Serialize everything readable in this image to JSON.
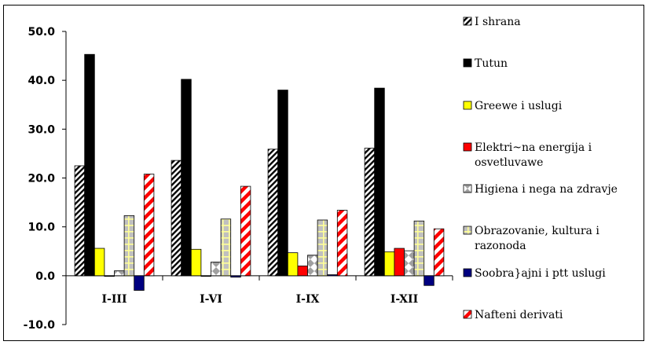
{
  "chart_data": {
    "type": "bar",
    "categories": [
      "I-III",
      "I-VI",
      "I-IX",
      "I-XII"
    ],
    "ylim": [
      -10,
      50
    ],
    "yticks": [
      -10,
      0,
      10,
      20,
      30,
      40,
      50
    ],
    "ytick_labels": [
      "-10.0",
      "0.0",
      "10.0",
      "20.0",
      "30.0",
      "40.0",
      "50.0"
    ],
    "grid": false,
    "legend_position": "right",
    "series": [
      {
        "name": "I shrana",
        "values": [
          22.5,
          23.6,
          25.9,
          26.1
        ],
        "color": "#ffffff",
        "pattern": "dark-diagonal"
      },
      {
        "name": "Tutun",
        "values": [
          45.3,
          40.2,
          38.0,
          38.4
        ],
        "color": "#000000",
        "pattern": "solid"
      },
      {
        "name": "Greewe i uslugi",
        "values": [
          5.6,
          5.4,
          4.7,
          4.9
        ],
        "color": "#ffff00",
        "pattern": "solid"
      },
      {
        "name": "Elektri~na energija i osvetluvawe",
        "values": [
          0.0,
          0.0,
          2.0,
          5.6
        ],
        "color": "#ff0000",
        "pattern": "solid"
      },
      {
        "name": "Higiena i nega na zdravje",
        "values": [
          1.0,
          2.8,
          4.2,
          5.1
        ],
        "color": "#ffffff",
        "pattern": "grey-diamond"
      },
      {
        "name": "Obrazovanie, kultura i razonoda",
        "values": [
          12.3,
          11.6,
          11.4,
          11.2
        ],
        "color": "#c0c0c0",
        "pattern": "yellow-grid"
      },
      {
        "name": "Soobra}ajni i ptt uslugi",
        "values": [
          -3.0,
          -0.3,
          0.2,
          -2.0
        ],
        "color": "#000080",
        "pattern": "solid"
      },
      {
        "name": "Nafteni derivati",
        "values": [
          20.8,
          18.3,
          13.4,
          9.6
        ],
        "color": "#ffffff",
        "pattern": "red-diagonal"
      }
    ],
    "legend_labels": [
      [
        "I shrana"
      ],
      [
        "Tutun"
      ],
      [
        "Greewe i uslugi"
      ],
      [
        "Elektri~na energija i",
        "osvetluvawe"
      ],
      [
        "Higiena i nega na zdravje"
      ],
      [
        "Obrazovanie, kultura i",
        "razonoda"
      ],
      [
        "Soobra}ajni i ptt uslugi"
      ],
      [
        "Nafteni derivati"
      ]
    ]
  }
}
